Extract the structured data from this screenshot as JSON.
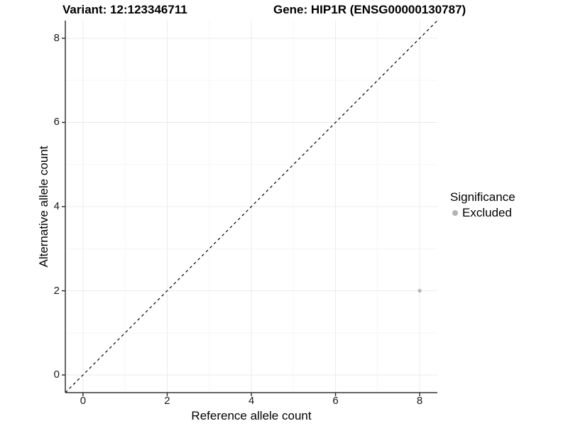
{
  "header": {
    "variant_title": "Variant: 12:123346711",
    "gene_title": "Gene: HIP1R (ENSG00000130787)"
  },
  "chart_data": {
    "type": "scatter",
    "title_left": "Variant: 12:123346711",
    "title_right": "Gene: HIP1R (ENSG00000130787)",
    "xlabel": "Reference allele count",
    "ylabel": "Alternative allele count",
    "xlim": [
      -0.42,
      8.42
    ],
    "ylim": [
      -0.42,
      8.42
    ],
    "x_ticks": [
      0,
      2,
      4,
      6,
      8
    ],
    "y_ticks": [
      0,
      2,
      4,
      6,
      8
    ],
    "x_minor_ticks": [
      1,
      3,
      5,
      7
    ],
    "y_minor_ticks": [
      1,
      3,
      5,
      7
    ],
    "grid": true,
    "identity_line": {
      "style": "dashed",
      "x1": -0.42,
      "y1": -0.42,
      "x2": 8.42,
      "y2": 8.42,
      "color": "#000000"
    },
    "series": [
      {
        "name": "Excluded",
        "color": "#b3b3b3",
        "point_radius": 2.5,
        "points": [
          [
            8,
            2
          ]
        ]
      }
    ],
    "legend": {
      "title": "Significance",
      "position": "right",
      "items": [
        {
          "label": "Excluded",
          "color": "#b3b3b3"
        }
      ]
    },
    "colors": {
      "grid_major": "#ebebeb",
      "grid_minor": "#f5f5f5",
      "axis": "#333333",
      "tick_label": "#1a1a1a",
      "background": "#ffffff"
    }
  }
}
